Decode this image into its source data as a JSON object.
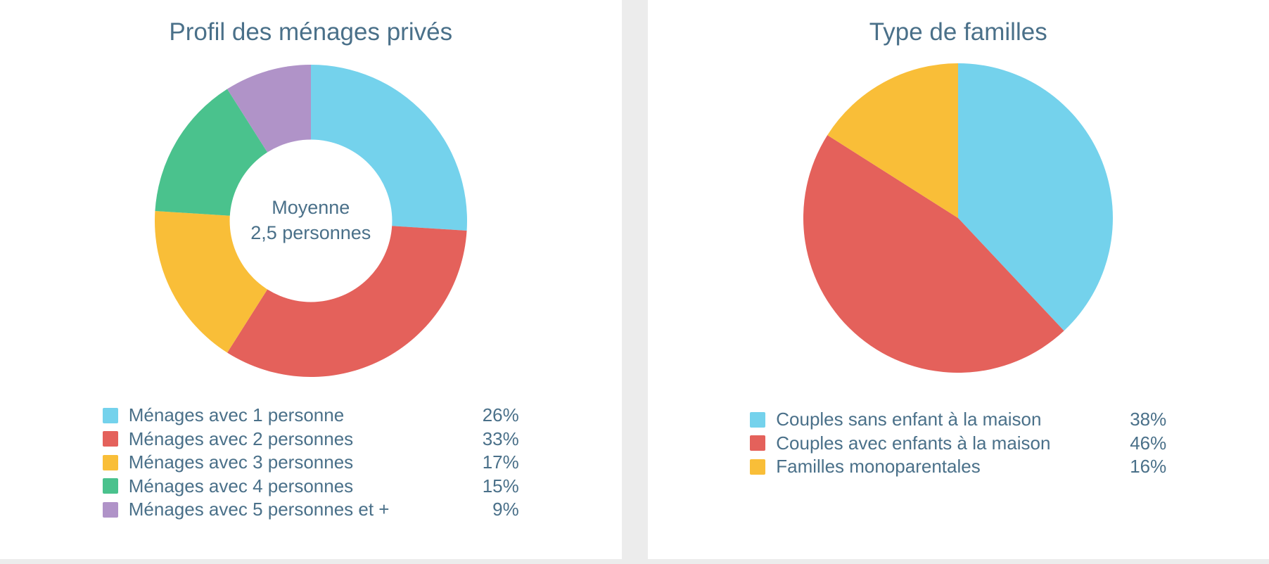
{
  "page": {
    "background_color": "#ffffff",
    "divider_color": "#ececec",
    "text_color": "#4a7089"
  },
  "chart_data": [
    {
      "type": "pie",
      "donut": true,
      "inner_radius_ratio": 0.52,
      "start_angle_deg": 0,
      "direction": "clockwise",
      "title": "Profil des ménages privés",
      "center_label": [
        "Moyenne",
        "2,5 personnes"
      ],
      "categories": [
        "Ménages avec 1 personne",
        "Ménages avec 2 personnes",
        "Ménages avec 3 personnes",
        "Ménages avec 4 personnes",
        "Ménages avec 5 personnes et +"
      ],
      "values": [
        26,
        33,
        17,
        15,
        9
      ],
      "value_labels": [
        "26%",
        "33%",
        "17%",
        "15%",
        "9%"
      ],
      "colors": [
        "#74d2ec",
        "#e4615b",
        "#f9be38",
        "#4ac28d",
        "#b093c8"
      ],
      "legend_position": "bottom"
    },
    {
      "type": "pie",
      "donut": false,
      "start_angle_deg": 0,
      "direction": "clockwise",
      "title": "Type de familles",
      "categories": [
        "Couples sans enfant à la maison",
        "Couples avec enfants à la maison",
        "Familles monoparentales"
      ],
      "values": [
        38,
        46,
        16
      ],
      "value_labels": [
        "38%",
        "46%",
        "16%"
      ],
      "colors": [
        "#74d2ec",
        "#e4615b",
        "#f9be38"
      ],
      "legend_position": "bottom"
    }
  ]
}
